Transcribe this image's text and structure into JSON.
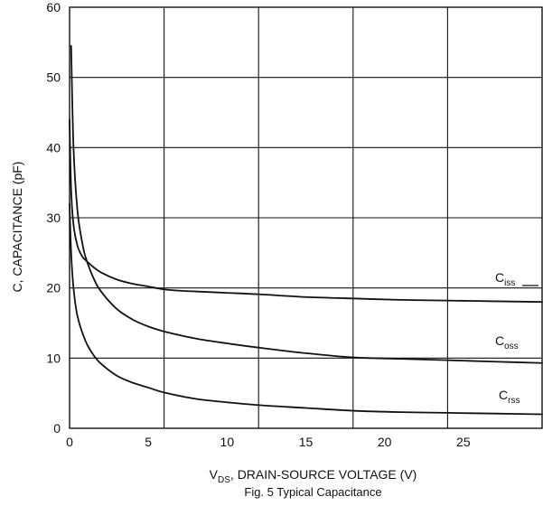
{
  "chart_data": {
    "type": "line",
    "caption": "Fig. 5 Typical Capacitance",
    "xlabel": {
      "main": "V",
      "sub": "DS",
      "rest": ", DRAIN-SOURCE VOLTAGE (V)"
    },
    "ylabel": "C, CAPACITANCE (pF)",
    "xlim": [
      0,
      30
    ],
    "ylim": [
      0,
      60
    ],
    "x_ticks": [
      "0",
      "5",
      "10",
      "15",
      "20",
      "25"
    ],
    "x_tick_values": [
      0,
      5,
      10,
      15,
      20,
      25
    ],
    "y_ticks": [
      "0",
      "10",
      "20",
      "30",
      "40",
      "50",
      "60"
    ],
    "y_tick_values": [
      0,
      10,
      20,
      30,
      40,
      50,
      60
    ],
    "x_gridlines": [
      6,
      12,
      18,
      24
    ],
    "y_gridlines": [
      10,
      20,
      30,
      40,
      50
    ],
    "grid": true,
    "series": [
      {
        "name": "iss",
        "label_main": "C",
        "label_sub": "iss",
        "x": [
          0,
          0.1,
          0.25,
          0.5,
          0.8,
          1.0,
          1.5,
          2.0,
          3.0,
          4.0,
          5.0,
          6.0,
          7.0,
          8.0,
          10.0,
          12.0,
          15.0,
          18.0,
          21.0,
          24.0,
          27.0,
          30.0
        ],
        "y": [
          44.0,
          34.0,
          29.0,
          26.0,
          24.5,
          24.0,
          23.0,
          22.2,
          21.2,
          20.6,
          20.2,
          19.8,
          19.6,
          19.5,
          19.3,
          19.1,
          18.7,
          18.5,
          18.3,
          18.2,
          18.1,
          18.0
        ]
      },
      {
        "name": "oss",
        "label_main": "C",
        "label_sub": "oss",
        "x": [
          0.1,
          0.25,
          0.5,
          0.8,
          1.0,
          1.5,
          2.0,
          3.0,
          4.0,
          5.0,
          6.0,
          8.0,
          10.0,
          12.0,
          15.0,
          18.0,
          21.0,
          24.0,
          27.0,
          30.0
        ],
        "y": [
          54.5,
          40.0,
          31.0,
          26.5,
          24.5,
          21.5,
          19.5,
          17.0,
          15.5,
          14.5,
          13.8,
          12.8,
          12.1,
          11.5,
          10.7,
          10.1,
          9.9,
          9.7,
          9.5,
          9.3
        ]
      },
      {
        "name": "rss",
        "label_main": "C",
        "label_sub": "rss",
        "x": [
          0,
          0.1,
          0.25,
          0.5,
          1.0,
          1.5,
          2.0,
          3.0,
          4.0,
          5.0,
          6.0,
          8.0,
          10.0,
          12.0,
          15.0,
          18.0,
          21.0,
          24.0,
          27.0,
          30.0
        ],
        "y": [
          32.0,
          25.0,
          20.0,
          16.0,
          12.5,
          10.5,
          9.2,
          7.5,
          6.5,
          5.8,
          5.1,
          4.2,
          3.7,
          3.3,
          2.9,
          2.5,
          2.3,
          2.2,
          2.1,
          2.0
        ]
      }
    ]
  }
}
